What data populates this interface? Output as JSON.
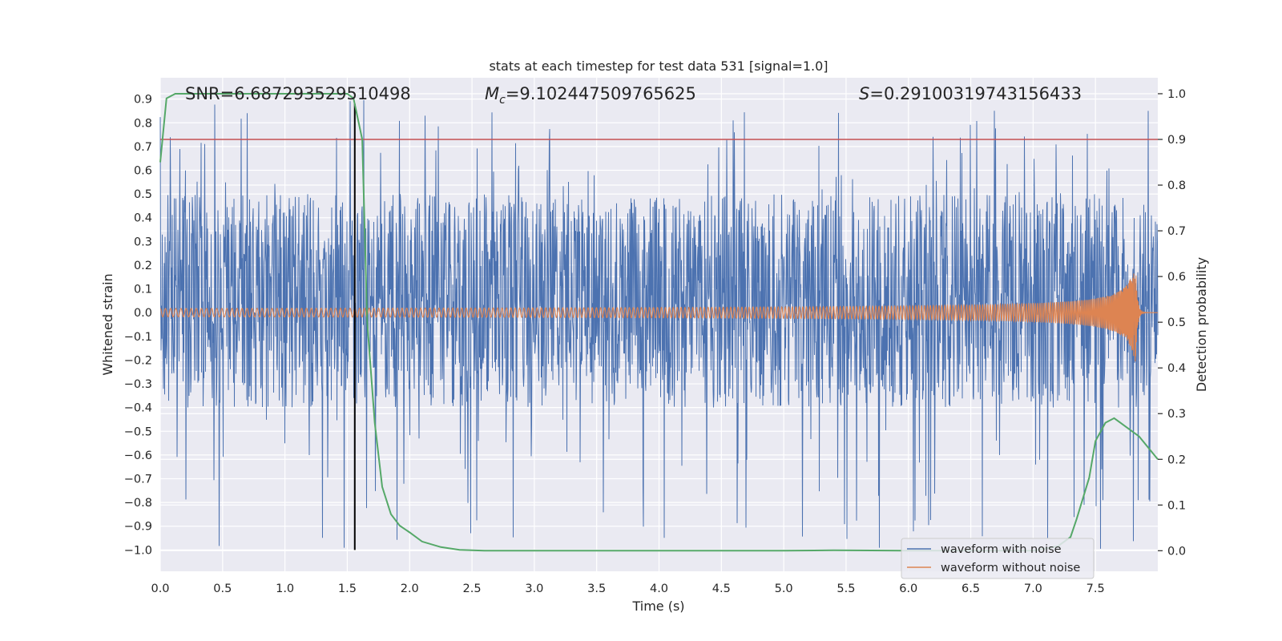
{
  "chart_data": {
    "type": "line",
    "title": "stats at each timestep for test data 531 [signal=1.0]",
    "xlabel": "Time (s)",
    "ylabel_left": "Whitened strain",
    "ylabel_right": "Detection probability",
    "xlim": [
      0.0,
      8.0
    ],
    "ylim_left": [
      -1.09,
      0.99
    ],
    "ylim_right": [
      -0.045,
      1.035
    ],
    "x_ticks": [
      "0.0",
      "0.5",
      "1.0",
      "1.5",
      "2.0",
      "2.5",
      "3.0",
      "3.5",
      "4.0",
      "4.5",
      "5.0",
      "5.5",
      "6.0",
      "6.5",
      "7.0",
      "7.5"
    ],
    "x_tick_values": [
      0.0,
      0.5,
      1.0,
      1.5,
      2.0,
      2.5,
      3.0,
      3.5,
      4.0,
      4.5,
      5.0,
      5.5,
      6.0,
      6.5,
      7.0,
      7.5
    ],
    "y_left_ticks": [
      "0.9",
      "0.8",
      "0.7",
      "0.6",
      "0.5",
      "0.4",
      "0.3",
      "0.2",
      "0.1",
      "0.0",
      "−0.1",
      "−0.2",
      "−0.3",
      "−0.4",
      "−0.5",
      "−0.6",
      "−0.7",
      "−0.8",
      "−0.9",
      "−1.0"
    ],
    "y_left_tick_values": [
      0.9,
      0.8,
      0.7,
      0.6,
      0.5,
      0.4,
      0.3,
      0.2,
      0.1,
      0.0,
      -0.1,
      -0.2,
      -0.3,
      -0.4,
      -0.5,
      -0.6,
      -0.7,
      -0.8,
      -0.9,
      -1.0
    ],
    "y_right_ticks": [
      "1.0",
      "0.9",
      "0.8",
      "0.7",
      "0.6",
      "0.5",
      "0.4",
      "0.3",
      "0.2",
      "0.1",
      "0.0"
    ],
    "y_right_tick_values": [
      1.0,
      0.9,
      0.8,
      0.7,
      0.6,
      0.5,
      0.4,
      0.3,
      0.2,
      0.1,
      0.0
    ],
    "stats": {
      "snr": "SNR=6.687293529510498",
      "mc_symbol": "M",
      "mc_sub": "c",
      "mc_value": "=9.102447509765625",
      "s_symbol": "S",
      "s_value": "=0.29100319743156433"
    },
    "threshold": {
      "axis": "right",
      "value": 0.9,
      "color": "#c44e52"
    },
    "marker_line": {
      "x": 1.56,
      "y_range": [
        -1.0,
        0.88
      ],
      "color": "#000000"
    },
    "series": [
      {
        "name": "waveform with noise",
        "axis": "left",
        "color": "#4c72b0",
        "x_range": [
          0.0,
          8.0
        ],
        "envelope": {
          "upper": 0.5,
          "lower": -0.4,
          "spike_max": 0.9,
          "spike_min": -1.0
        }
      },
      {
        "name": "waveform without noise",
        "axis": "left",
        "color": "#dd8452",
        "merger_time": 7.82,
        "amplitude_start": 0.01,
        "amplitude_peak": 0.23
      },
      {
        "name": "detection probability",
        "axis": "right",
        "color": "#55a868",
        "x": [
          0.0,
          0.05,
          0.12,
          1.5,
          1.55,
          1.62,
          1.66,
          1.72,
          1.78,
          1.85,
          1.92,
          2.0,
          2.1,
          2.25,
          2.4,
          2.6,
          3.0,
          4.0,
          5.0,
          5.4,
          6.0,
          7.0,
          7.2,
          7.3,
          7.35,
          7.45,
          7.5,
          7.58,
          7.65,
          7.75,
          7.85,
          8.0
        ],
        "values": [
          0.85,
          0.99,
          1.0,
          1.0,
          0.99,
          0.9,
          0.5,
          0.28,
          0.14,
          0.08,
          0.055,
          0.04,
          0.02,
          0.008,
          0.002,
          0.0,
          0.0,
          0.0,
          0.0,
          0.001,
          0.0,
          0.0,
          0.01,
          0.03,
          0.07,
          0.16,
          0.24,
          0.28,
          0.29,
          0.27,
          0.25,
          0.2
        ]
      }
    ],
    "legend": {
      "position": "lower-right",
      "entries": [
        {
          "label": "waveform with noise",
          "color": "#4c72b0"
        },
        {
          "label": "waveform without noise",
          "color": "#dd8452"
        }
      ]
    },
    "style": {
      "plot_background": "#eaeaf2",
      "grid_color": "#ffffff",
      "text_color": "#262626"
    }
  }
}
